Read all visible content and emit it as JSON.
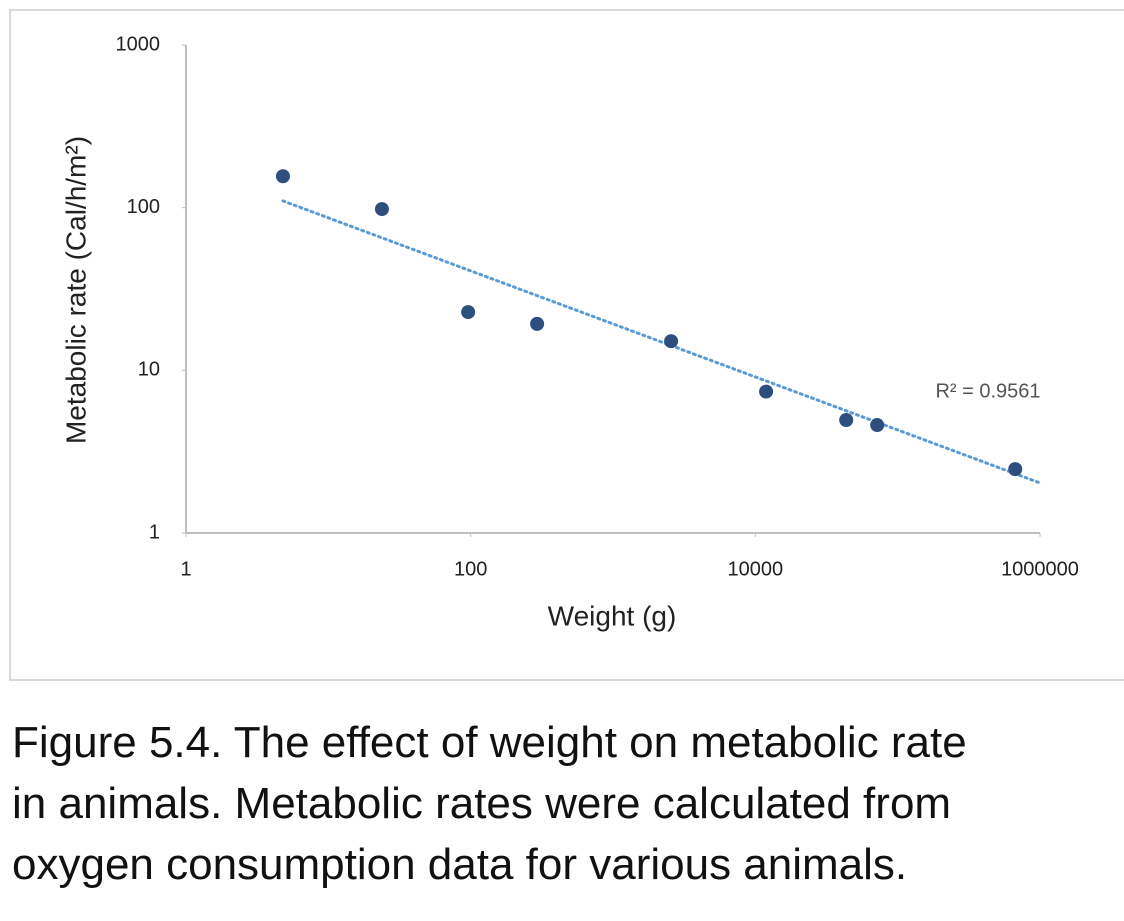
{
  "chart_data": {
    "type": "scatter",
    "x_label": "Weight (g)",
    "y_label": "Metabolic rate (Cal/h/m²)",
    "xscale": "log",
    "yscale": "log",
    "xlim": [
      1,
      1000000
    ],
    "ylim": [
      1,
      1000
    ],
    "xticks": [
      1,
      100,
      10000,
      1000000
    ],
    "yticks": [
      1,
      10,
      100,
      1000
    ],
    "color": "#2e4e7e",
    "x": [
      4.8,
      23.8,
      96,
      293,
      2560,
      11900,
      43500,
      71800,
      670000
    ],
    "values": [
      156,
      98,
      22.8,
      19.3,
      15.1,
      7.4,
      4.95,
      4.61,
      2.47
    ],
    "trendline": {
      "x": [
        4.8,
        1000000
      ],
      "y": [
        110,
        2.03
      ],
      "color": "#5b9bd5",
      "label": "R² = 0.9561"
    }
  },
  "caption": {
    "lines": [
      "Figure 5.4.  The effect of weight on metabolic rate",
      "in animals.  Metabolic rates were calculated from",
      "oxygen consumption data for various animals."
    ]
  }
}
